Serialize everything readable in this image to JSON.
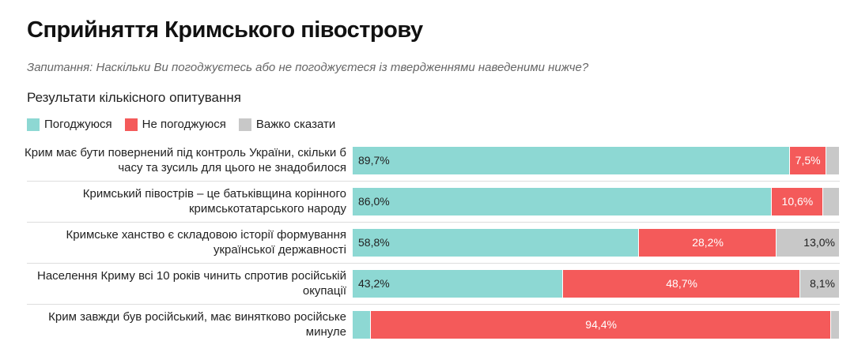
{
  "chart_data": {
    "type": "stacked-bar-horizontal",
    "title": "Сприйняття Кримського півострову",
    "subtitle": "Запитання: Наскільки Ви погоджуєтесь або не погоджуєтеся із твердженнями наведеними нижче?",
    "description": "Результати кількісного опитування",
    "categories": [
      "Крим має бути повернений під контроль України, скільки б часу та зусиль для цього не знадобилося",
      "Кримський півострів – це батьківщина корінного кримськотатарського народу",
      "Кримське ханство є складовою історії формування української державності",
      "Населення Криму всі 10 років чинить спротив російській окупації",
      "Крим завжди був російський, має винятково російське минуле"
    ],
    "xlim": [
      0,
      100
    ],
    "series": [
      {
        "name": "Погоджуюся",
        "color": "#8dd8d3",
        "values": [
          89.7,
          86.0,
          58.8,
          43.2,
          3.8
        ],
        "value_labels": [
          "89,7%",
          "86,0%",
          "58,8%",
          "43,2%",
          null
        ]
      },
      {
        "name": "Не погоджуюся",
        "color": "#f45a5a",
        "values": [
          7.5,
          10.6,
          28.2,
          48.7,
          94.4
        ],
        "value_labels": [
          "7,5%",
          "10,6%",
          "28,2%",
          "48,7%",
          "94,4%"
        ]
      },
      {
        "name": "Важко сказати",
        "color": "#c8c8c8",
        "values": [
          2.8,
          3.4,
          13.0,
          8.1,
          1.8
        ],
        "value_labels": [
          null,
          null,
          "13,0%",
          "8,1%",
          null
        ]
      }
    ]
  }
}
